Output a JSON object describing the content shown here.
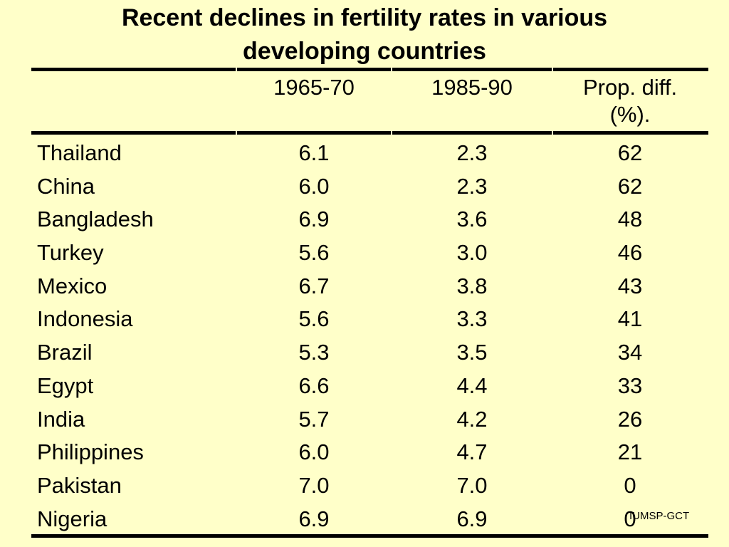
{
  "title_line1": "Recent declines in fertility rates in various",
  "title_line2": "developing countries",
  "headers": {
    "col1": "1965-70",
    "col2": "1985-90",
    "col3_line1": "Prop. diff.",
    "col3_line2": "(%)."
  },
  "rows": [
    {
      "country": "Thailand",
      "r1965": "6.1",
      "r1985": "2.3",
      "diff": "62"
    },
    {
      "country": "China",
      "r1965": "6.0",
      "r1985": "2.3",
      "diff": "62"
    },
    {
      "country": "Bangladesh",
      "r1965": "6.9",
      "r1985": "3.6",
      "diff": "48"
    },
    {
      "country": "Turkey",
      "r1965": "5.6",
      "r1985": "3.0",
      "diff": "46"
    },
    {
      "country": "Mexico",
      "r1965": "6.7",
      "r1985": "3.8",
      "diff": "43"
    },
    {
      "country": "Indonesia",
      "r1965": "5.6",
      "r1985": "3.3",
      "diff": "41"
    },
    {
      "country": "Brazil",
      "r1965": "5.3",
      "r1985": "3.5",
      "diff": "34"
    },
    {
      "country": "Egypt",
      "r1965": "6.6",
      "r1985": "4.4",
      "diff": "33"
    },
    {
      "country": "India",
      "r1965": "5.7",
      "r1985": "4.2",
      "diff": "26"
    },
    {
      "country": "Philippines",
      "r1965": "6.0",
      "r1985": "4.7",
      "diff": "21"
    },
    {
      "country": "Pakistan",
      "r1965": "7.0",
      "r1985": "7.0",
      "diff": "0"
    },
    {
      "country": "Nigeria",
      "r1965": "6.9",
      "r1985": "6.9",
      "diff": "0"
    }
  ],
  "footer": "IUMSP-GCT",
  "colors": {
    "background": "#FFFFC9",
    "text": "#000000"
  }
}
